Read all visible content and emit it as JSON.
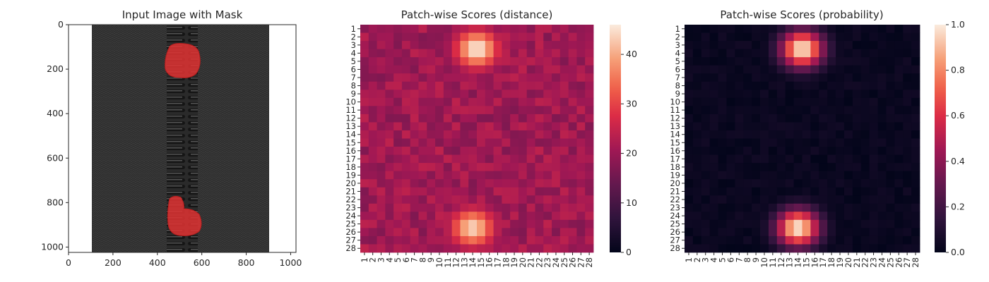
{
  "chart_data": [
    {
      "type": "image",
      "title": "Input Image with Mask",
      "xlabel": "",
      "ylabel": "",
      "xlim": [
        0,
        1024
      ],
      "ylim": [
        1024,
        0
      ],
      "xticks": [
        0,
        200,
        400,
        600,
        800,
        1000
      ],
      "yticks": [
        0,
        200,
        400,
        600,
        800,
        1000
      ],
      "content": "black zipper tape with teeth running vertically; red mask overlay on two defect regions",
      "colors": {
        "background": "#ffffff",
        "fabric": "#3a3a3a",
        "teeth": "#1e1e1e",
        "mask": "#e03333"
      },
      "mask_regions": [
        {
          "label": "upper defect",
          "x_range": [
            435,
            585
          ],
          "y_range": [
            85,
            245
          ]
        },
        {
          "label": "lower defect",
          "x_range": [
            440,
            590
          ],
          "y_range": [
            785,
            1005
          ]
        }
      ]
    },
    {
      "type": "heatmap",
      "title": "Patch-wise Scores (distance)",
      "xlabel": "",
      "ylabel": "",
      "rows": 28,
      "cols": 28,
      "x_tick_labels": [
        "1",
        "2",
        "3",
        "4",
        "5",
        "6",
        "7",
        "8",
        "9",
        "10",
        "11",
        "12",
        "13",
        "14",
        "15",
        "16",
        "17",
        "18",
        "19",
        "20",
        "21",
        "22",
        "23",
        "24",
        "25",
        "26",
        "27",
        "28"
      ],
      "y_tick_labels": [
        "1",
        "2",
        "3",
        "4",
        "5",
        "6",
        "7",
        "8",
        "9",
        "10",
        "11",
        "12",
        "13",
        "14",
        "15",
        "16",
        "17",
        "18",
        "19",
        "20",
        "21",
        "22",
        "23",
        "24",
        "25",
        "26",
        "27",
        "28"
      ],
      "colormap": "rocket",
      "vmin": 0,
      "vmax": 46,
      "colorbar_ticks": [
        0,
        10,
        20,
        30,
        40
      ],
      "background_range": [
        17,
        24
      ],
      "hotspots": [
        {
          "row": 3.5,
          "col": 14.5,
          "peak": 46
        },
        {
          "row": 25.5,
          "col": 14.0,
          "peak": 44
        }
      ]
    },
    {
      "type": "heatmap",
      "title": "Patch-wise Scores (probability)",
      "xlabel": "",
      "ylabel": "",
      "rows": 28,
      "cols": 28,
      "x_tick_labels": [
        "1",
        "2",
        "3",
        "4",
        "5",
        "6",
        "7",
        "8",
        "9",
        "10",
        "11",
        "12",
        "13",
        "14",
        "15",
        "16",
        "17",
        "18",
        "19",
        "20",
        "21",
        "22",
        "23",
        "24",
        "25",
        "26",
        "27",
        "28"
      ],
      "y_tick_labels": [
        "1",
        "2",
        "3",
        "4",
        "5",
        "6",
        "7",
        "8",
        "9",
        "10",
        "11",
        "12",
        "13",
        "14",
        "15",
        "16",
        "17",
        "18",
        "19",
        "20",
        "21",
        "22",
        "23",
        "24",
        "25",
        "26",
        "27",
        "28"
      ],
      "colormap": "rocket",
      "vmin": 0.0,
      "vmax": 1.0,
      "colorbar_ticks": [
        "0.0",
        "0.2",
        "0.4",
        "0.6",
        "0.8",
        "1.0"
      ],
      "background_range": [
        0.0,
        0.05
      ],
      "hotspots": [
        {
          "row": 3.5,
          "col": 14.5,
          "peak": 1.0
        },
        {
          "row": 25.5,
          "col": 14.0,
          "peak": 1.0
        }
      ]
    }
  ]
}
